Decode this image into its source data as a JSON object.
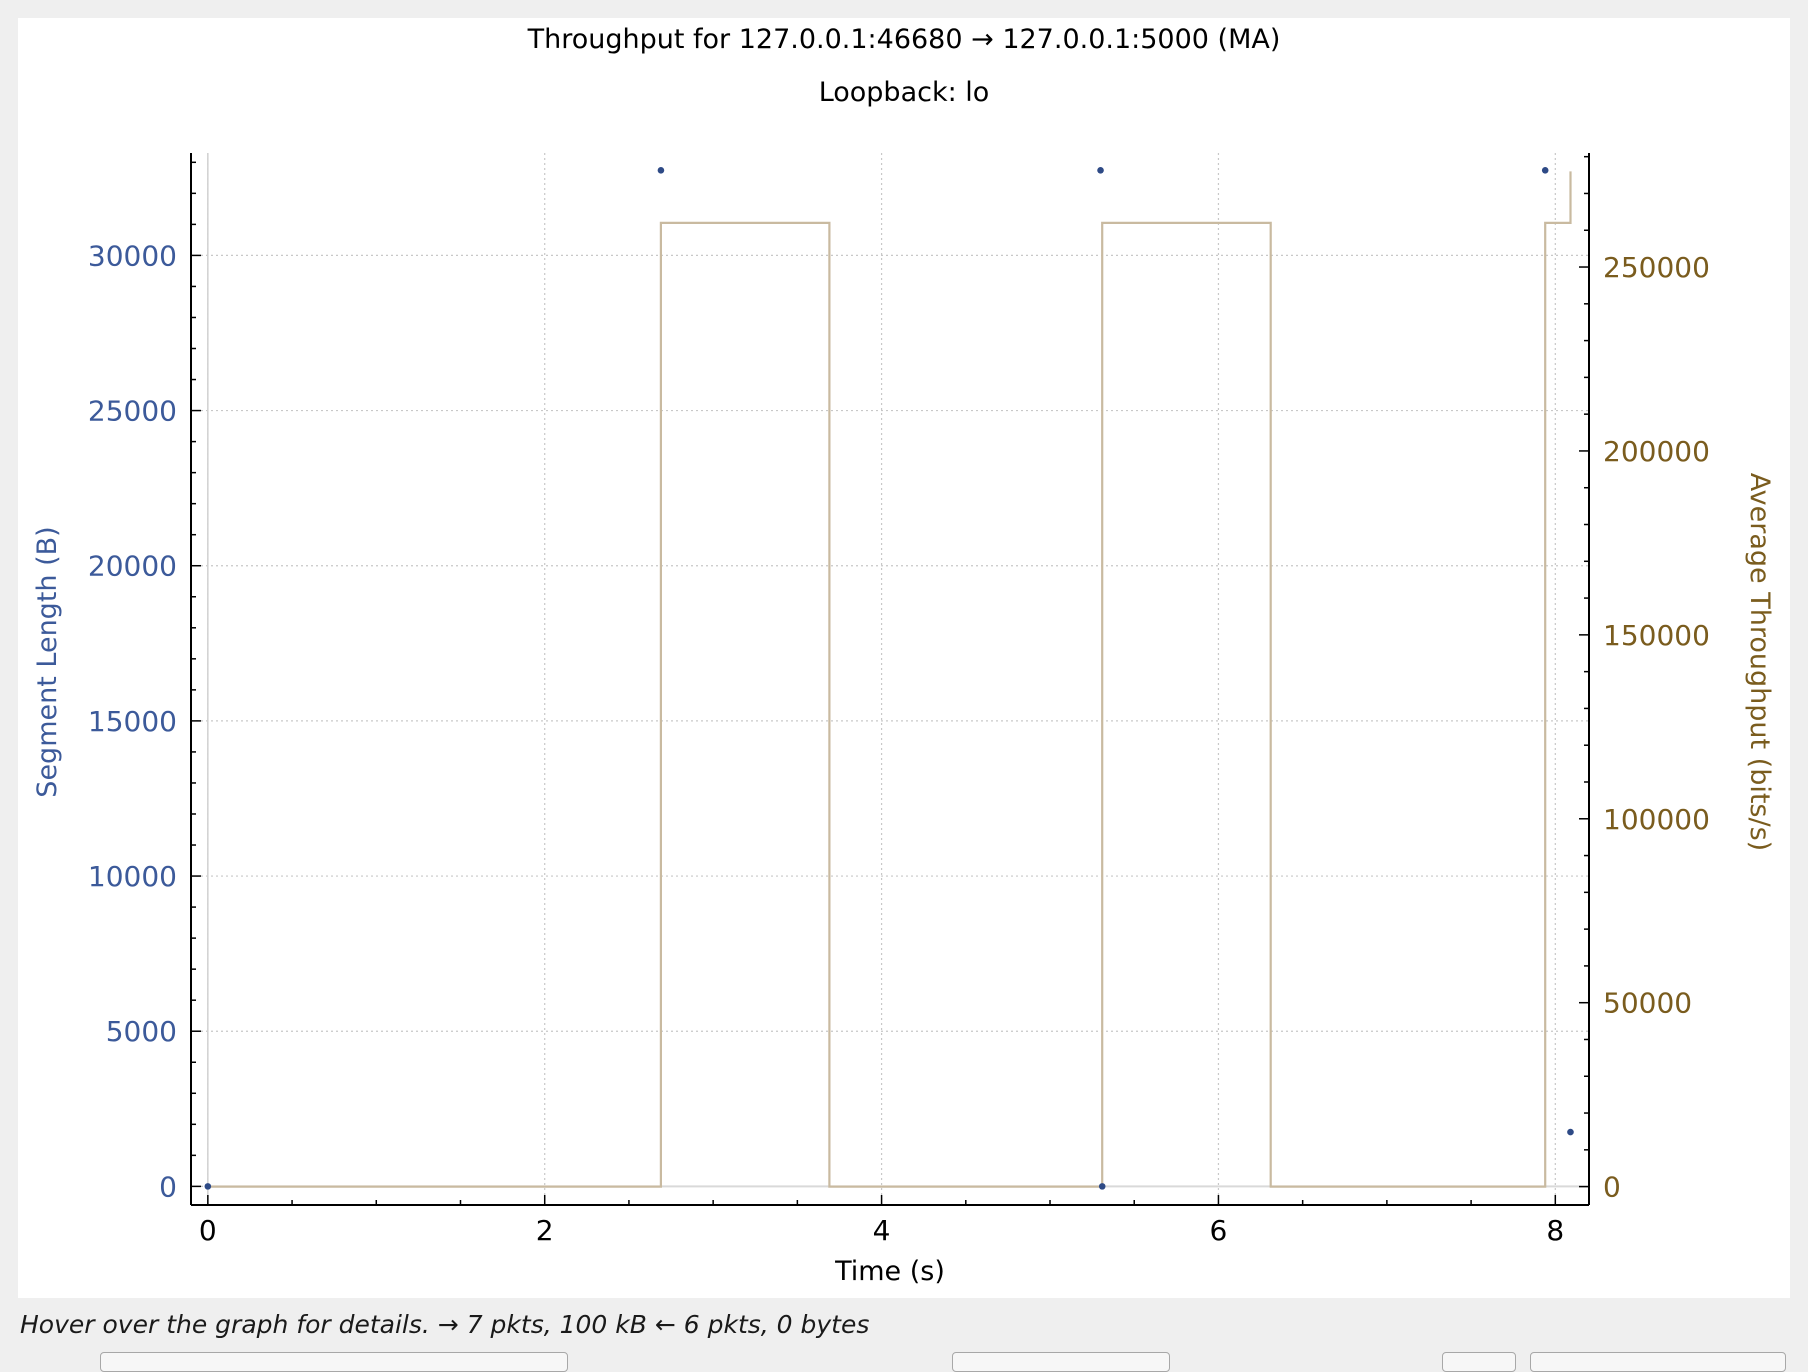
{
  "window": {
    "status_hint": "Hover over the graph for details. → 7 pkts, 100 kB ← 6 pkts, 0 bytes"
  },
  "chart_data": {
    "type": "line",
    "title": "Throughput for 127.0.0.1:46680 → 127.0.0.1:5000 (MA)",
    "subtitle": "Loopback: lo",
    "xlabel": "Time (s)",
    "ylabel": "Segment Length (B)",
    "y2label": "Average Throughput (bits/s)",
    "xlim": [
      -0.1,
      8.2
    ],
    "ylim": [
      -600,
      33300
    ],
    "y2lim": [
      -5000,
      281000
    ],
    "xticks": [
      "0",
      "2",
      "4",
      "6",
      "8"
    ],
    "yticks": [
      "0",
      "5000",
      "10000",
      "15000",
      "20000",
      "25000",
      "30000"
    ],
    "y2ticks": [
      "0",
      "50000",
      "100000",
      "150000",
      "200000",
      "250000"
    ],
    "grid": true,
    "colors": {
      "segment": "#2e4a86",
      "throughput": "#c9baa0",
      "y_axis_label": "#3c5a9a",
      "y2_axis_label": "#7a5c1e",
      "grid": "#c8c8c8"
    },
    "series": [
      {
        "name": "Segment Length (B)",
        "kind": "scatter",
        "axis": "left",
        "x": [
          0.0,
          2.69,
          5.3,
          5.31,
          7.94,
          8.09
        ],
        "y": [
          0,
          32741,
          32741,
          0,
          32741,
          1750
        ]
      },
      {
        "name": "Average Throughput (bits/s)",
        "kind": "step",
        "axis": "right",
        "x": [
          0.0,
          2.69,
          2.69,
          3.69,
          3.69,
          5.31,
          5.31,
          6.31,
          6.31,
          7.94,
          7.94,
          8.09,
          8.09
        ],
        "y": [
          0,
          0,
          262000,
          262000,
          0,
          0,
          262000,
          262000,
          0,
          0,
          262000,
          262000,
          276000
        ]
      }
    ]
  }
}
